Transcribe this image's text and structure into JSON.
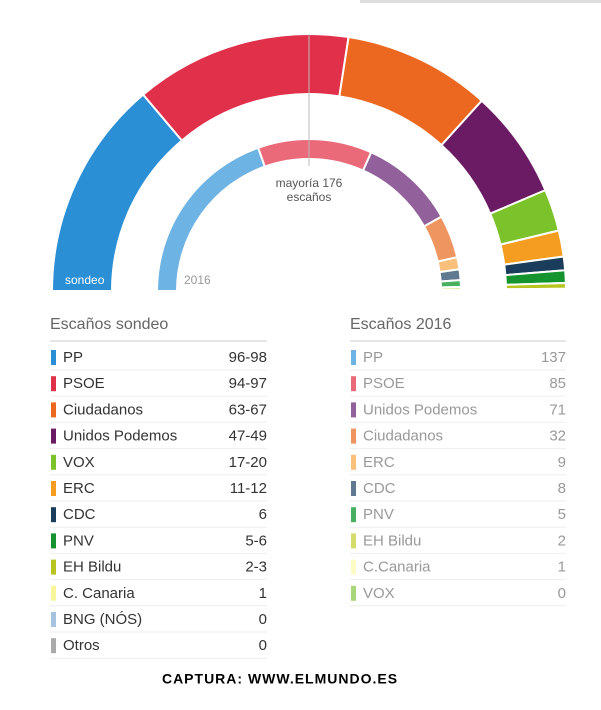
{
  "chart_data": {
    "type": "parliament",
    "majority_label": [
      "mayoría 176",
      "escaños"
    ],
    "footer": "CAPTURA: WWW.ELMUNDO.ES",
    "sondeo": {
      "arc_label": "sondeo",
      "title": "Escaños sondeo",
      "parties": [
        {
          "name": "PP",
          "color": "#2b8fd6",
          "seats": [
            96,
            98
          ],
          "seats_label": "96-98"
        },
        {
          "name": "PSOE",
          "color": "#e0304a",
          "seats": [
            94,
            97
          ],
          "seats_label": "94-97"
        },
        {
          "name": "Ciudadanos",
          "color": "#ec6820",
          "seats": [
            63,
            67
          ],
          "seats_label": "63-67"
        },
        {
          "name": "Unidos Podemos",
          "color": "#6a1b63",
          "seats": [
            47,
            49
          ],
          "seats_label": "47-49"
        },
        {
          "name": "VOX",
          "color": "#7cc22b",
          "seats": [
            17,
            20
          ],
          "seats_label": "17-20"
        },
        {
          "name": "ERC",
          "color": "#f59d20",
          "seats": [
            11,
            12
          ],
          "seats_label": "11-12"
        },
        {
          "name": "CDC",
          "color": "#1a3d5c",
          "seats": [
            6,
            6
          ],
          "seats_label": "6"
        },
        {
          "name": "PNV",
          "color": "#14932f",
          "seats": [
            5,
            6
          ],
          "seats_label": "5-6"
        },
        {
          "name": "EH Bildu",
          "color": "#b8c520",
          "seats": [
            2,
            3
          ],
          "seats_label": "2-3"
        },
        {
          "name": "C. Canaria",
          "color": "#f9f59a",
          "seats": [
            1,
            1
          ],
          "seats_label": "1"
        },
        {
          "name": "BNG (NÓS)",
          "color": "#a6c4e0",
          "seats": [
            0,
            0
          ],
          "seats_label": "0"
        },
        {
          "name": "Otros",
          "color": "#aaaaaa",
          "seats": [
            0,
            0
          ],
          "seats_label": "0"
        }
      ]
    },
    "results_2016": {
      "arc_label": "2016",
      "title": "Escaños 2016",
      "parties": [
        {
          "name": "PP",
          "color": "#6db3e3",
          "seats": 137
        },
        {
          "name": "PSOE",
          "color": "#ea6a7a",
          "seats": 85
        },
        {
          "name": "Unidos Podemos",
          "color": "#92609a",
          "seats": 71
        },
        {
          "name": "Ciudadanos",
          "color": "#ef9560",
          "seats": 32
        },
        {
          "name": "ERC",
          "color": "#f8c07a",
          "seats": 9
        },
        {
          "name": "CDC",
          "color": "#5f7a90",
          "seats": 8
        },
        {
          "name": "PNV",
          "color": "#49b05f",
          "seats": 5
        },
        {
          "name": "EH Bildu",
          "color": "#d5dc6c",
          "seats": 2
        },
        {
          "name": "C.Canaria",
          "color": "#fcfac5",
          "seats": 1
        },
        {
          "name": "VOX",
          "color": "#a8d77a",
          "seats": 0
        }
      ]
    }
  }
}
